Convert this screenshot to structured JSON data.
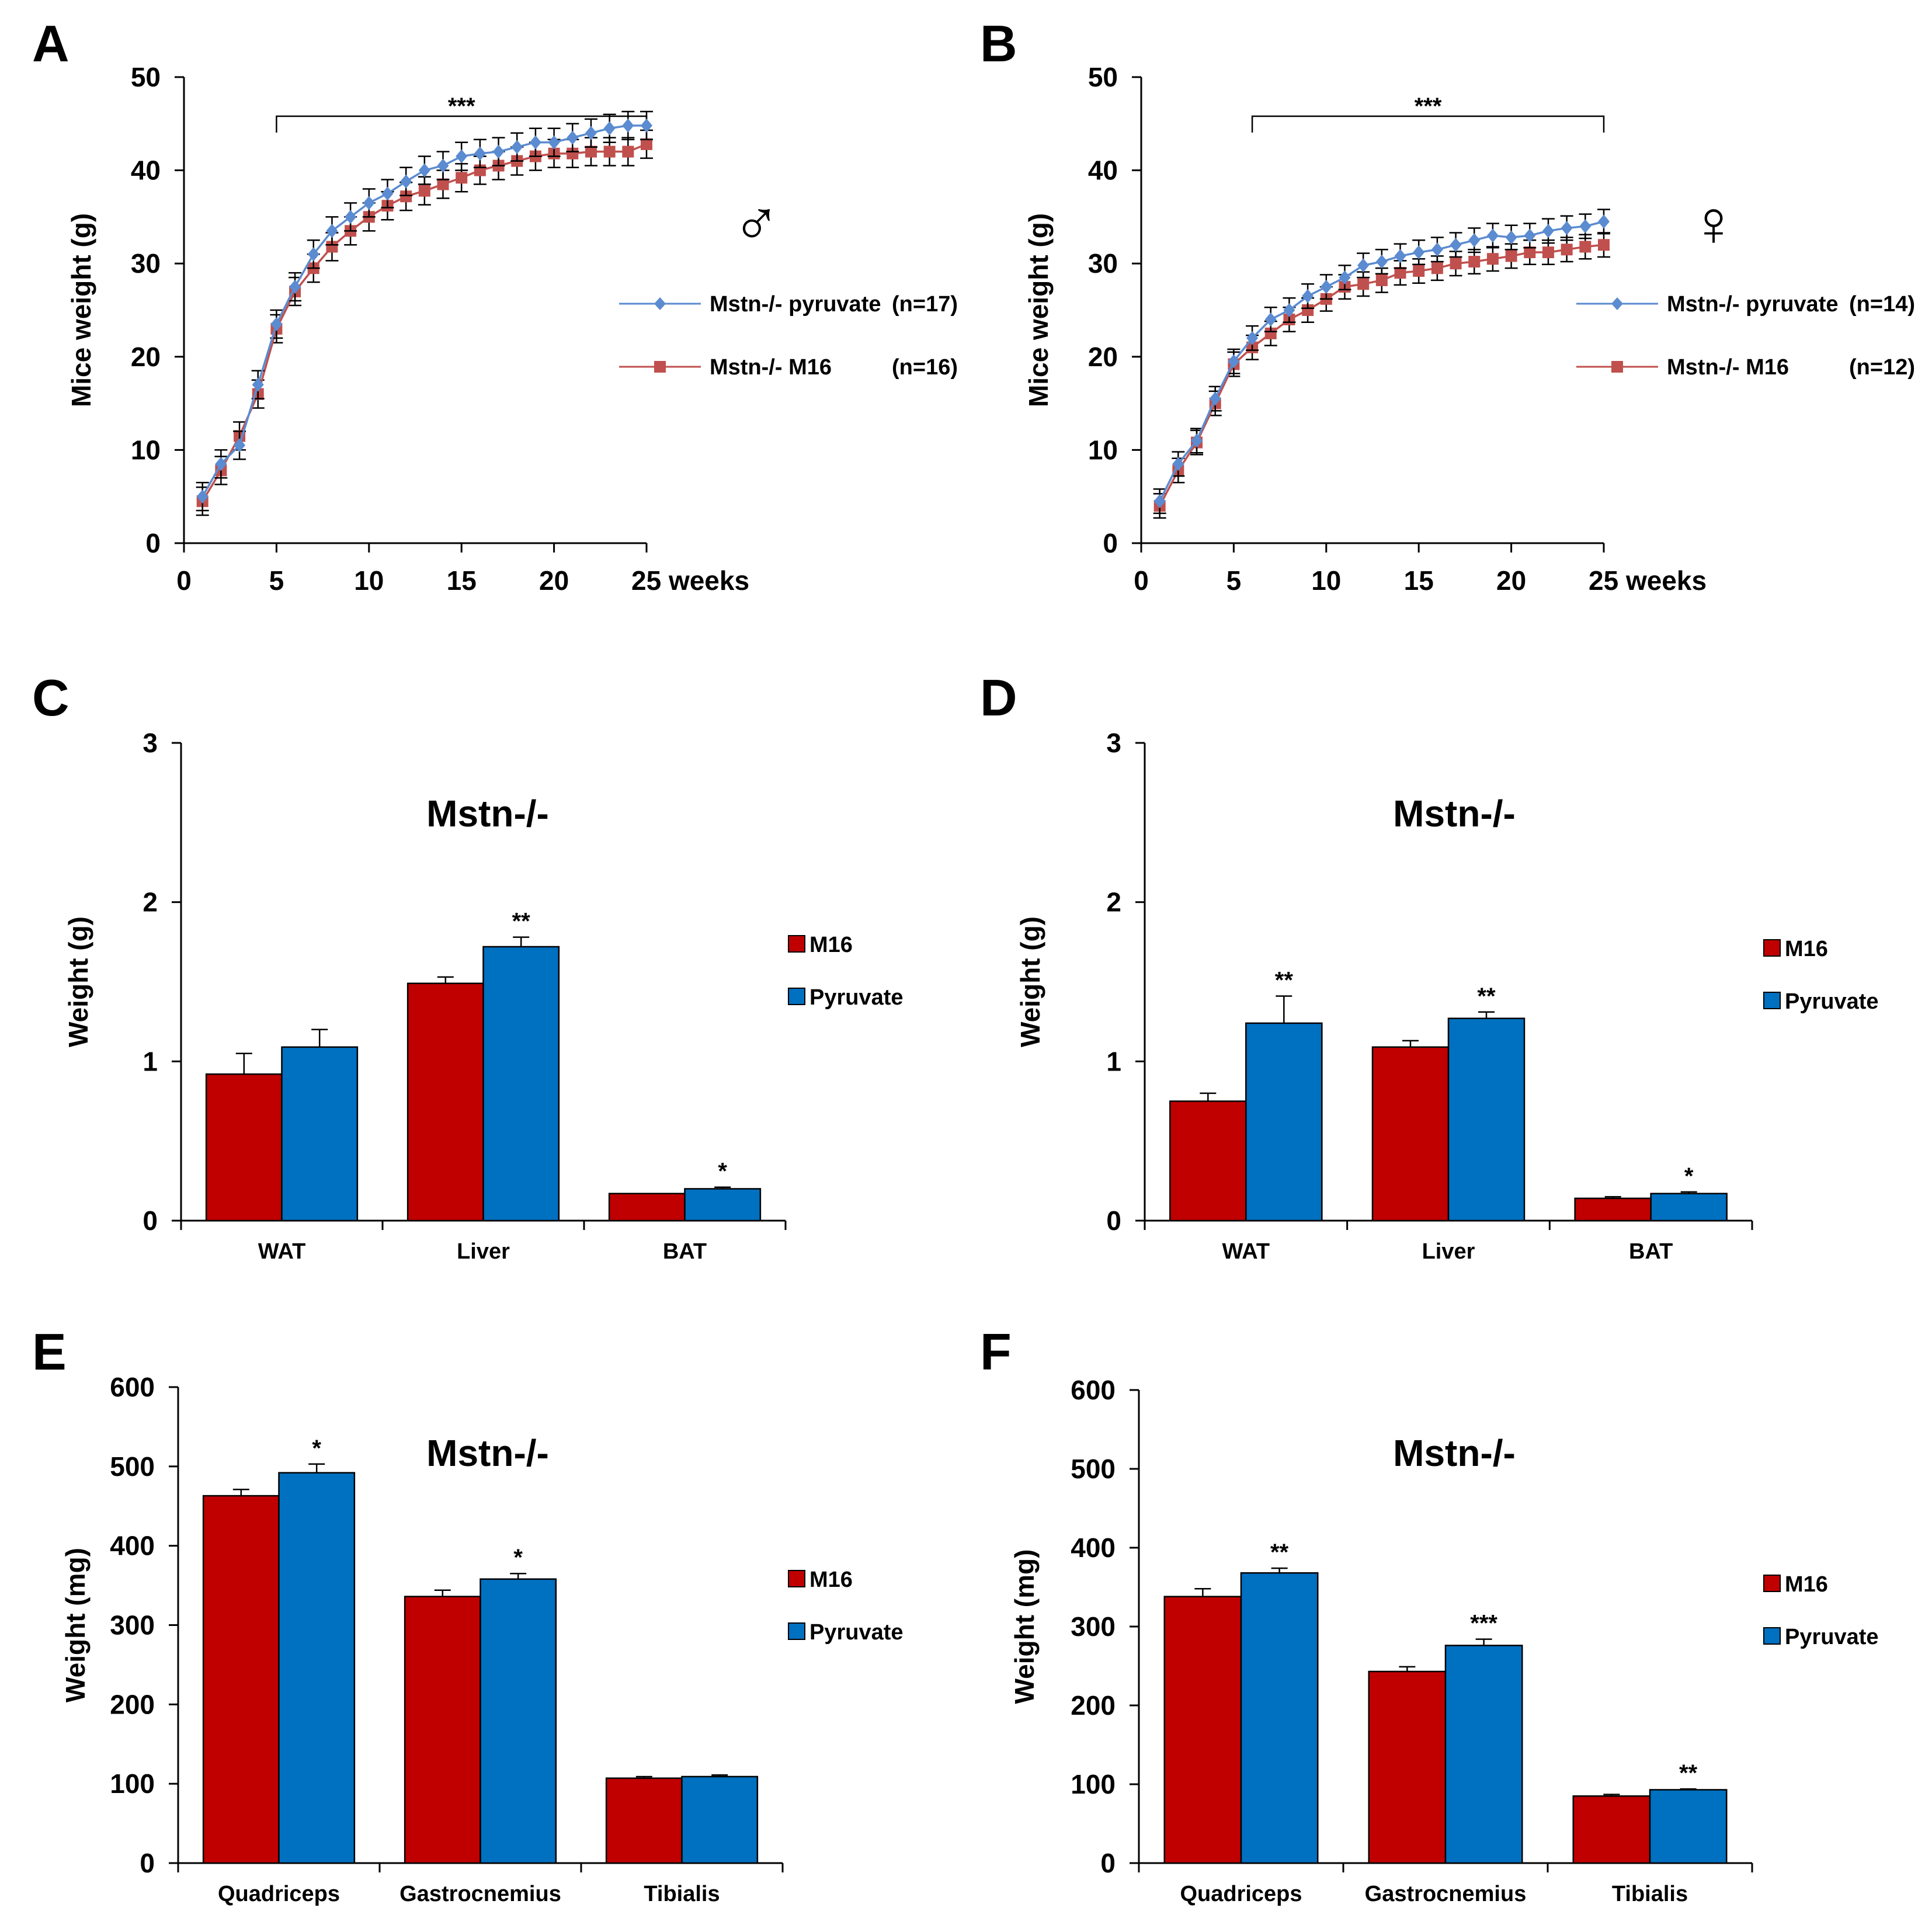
{
  "chart_data": [
    {
      "panel": "A",
      "type": "line",
      "xlabel": "weeks",
      "ylabel": "Mice weight (g)",
      "xlim": [
        0,
        25
      ],
      "ylim": [
        0,
        50
      ],
      "xticks": [
        0,
        5,
        10,
        15,
        20,
        25
      ],
      "yticks": [
        0,
        10,
        20,
        30,
        40,
        50
      ],
      "x": [
        1,
        2,
        3,
        4,
        5,
        6,
        7,
        8,
        9,
        10,
        11,
        12,
        13,
        14,
        15,
        16,
        17,
        18,
        19,
        20,
        21,
        22,
        23,
        24,
        25
      ],
      "series": [
        {
          "name": "Mstn-/- pyruvate",
          "n_label": "(n=17)",
          "color": "#5B8BD0",
          "marker": "diamond",
          "values": [
            5.0,
            8.5,
            10.5,
            17.0,
            23.5,
            27.5,
            31.0,
            33.5,
            35.0,
            36.5,
            37.5,
            38.8,
            40.0,
            40.5,
            41.5,
            41.8,
            42.0,
            42.5,
            43.0,
            43.0,
            43.5,
            44.0,
            44.5,
            44.8,
            44.8
          ]
        },
        {
          "name": "Mstn-/- M16",
          "n_label": "(n=16)",
          "color": "#C0504D",
          "marker": "square",
          "values": [
            4.5,
            7.8,
            11.5,
            16.0,
            23.0,
            27.0,
            29.5,
            31.8,
            33.5,
            35.0,
            36.2,
            37.2,
            37.8,
            38.5,
            39.2,
            40.0,
            40.5,
            41.0,
            41.5,
            41.8,
            41.8,
            42.0,
            42.0,
            42.0,
            42.8
          ]
        }
      ],
      "errors": 1.5,
      "significance": {
        "label": "***",
        "from": 5,
        "to": 25
      },
      "sex_symbol": "♂"
    },
    {
      "panel": "B",
      "type": "line",
      "xlabel": "weeks",
      "ylabel": "Mice weight (g)",
      "xlim": [
        0,
        25
      ],
      "ylim": [
        0,
        50
      ],
      "xticks": [
        0,
        5,
        10,
        15,
        20,
        25
      ],
      "yticks": [
        0,
        10,
        20,
        30,
        40,
        50
      ],
      "x": [
        1,
        2,
        3,
        4,
        5,
        6,
        7,
        8,
        9,
        10,
        11,
        12,
        13,
        14,
        15,
        16,
        17,
        18,
        19,
        20,
        21,
        22,
        23,
        24,
        25
      ],
      "series": [
        {
          "name": "Mstn-/- pyruvate",
          "n_label": "(n=14)",
          "color": "#5B8BD0",
          "marker": "diamond",
          "values": [
            4.5,
            8.5,
            11.0,
            15.5,
            19.5,
            22.0,
            24.0,
            25.0,
            26.5,
            27.5,
            28.5,
            29.8,
            30.2,
            30.8,
            31.2,
            31.5,
            32.0,
            32.5,
            33.0,
            32.8,
            33.0,
            33.5,
            33.8,
            34.0,
            34.5
          ]
        },
        {
          "name": "Mstn-/- M16",
          "n_label": "(n=12)",
          "color": "#C0504D",
          "marker": "square",
          "values": [
            4.0,
            7.8,
            10.8,
            15.0,
            19.2,
            21.0,
            22.5,
            24.0,
            25.0,
            26.2,
            27.5,
            27.8,
            28.2,
            29.0,
            29.2,
            29.5,
            30.0,
            30.2,
            30.5,
            30.8,
            31.2,
            31.2,
            31.5,
            31.8,
            32.0
          ]
        }
      ],
      "errors": 1.3,
      "significance": {
        "label": "***",
        "from": 6,
        "to": 25
      },
      "sex_symbol": "♀"
    },
    {
      "panel": "C",
      "type": "bar",
      "title": "Mstn-/-",
      "ylabel": "Weight (g)",
      "ylim": [
        0,
        3
      ],
      "yticks": [
        0,
        1,
        2,
        3
      ],
      "categories": [
        "WAT",
        "Liver",
        "BAT"
      ],
      "series": [
        {
          "name": "M16",
          "color": "#C00000",
          "values": [
            0.92,
            1.49,
            0.17
          ],
          "errors": [
            0.13,
            0.04,
            0.0
          ]
        },
        {
          "name": "Pyruvate",
          "color": "#0070C0",
          "values": [
            1.09,
            1.72,
            0.2
          ],
          "errors": [
            0.11,
            0.06,
            0.01
          ]
        }
      ],
      "annotations": [
        "",
        "**",
        "*"
      ]
    },
    {
      "panel": "D",
      "type": "bar",
      "title": "Mstn-/-",
      "ylabel": "Weight (g)",
      "ylim": [
        0,
        3
      ],
      "yticks": [
        0,
        1,
        2,
        3
      ],
      "categories": [
        "WAT",
        "Liver",
        "BAT"
      ],
      "series": [
        {
          "name": "M16",
          "color": "#C00000",
          "values": [
            0.75,
            1.09,
            0.14
          ],
          "errors": [
            0.05,
            0.04,
            0.01
          ]
        },
        {
          "name": "Pyruvate",
          "color": "#0070C0",
          "values": [
            1.24,
            1.27,
            0.17
          ],
          "errors": [
            0.17,
            0.04,
            0.01
          ]
        }
      ],
      "annotations": [
        "**",
        "**",
        "*"
      ]
    },
    {
      "panel": "E",
      "type": "bar",
      "title": "Mstn-/-",
      "ylabel": "Weight (mg)",
      "ylim": [
        0,
        600
      ],
      "yticks": [
        0,
        100,
        200,
        300,
        400,
        500,
        600
      ],
      "categories": [
        "Quadriceps",
        "Gastrocnemius",
        "Tibialis"
      ],
      "series": [
        {
          "name": "M16",
          "color": "#C00000",
          "values": [
            463,
            336,
            107
          ],
          "errors": [
            8,
            8,
            2
          ]
        },
        {
          "name": "Pyruvate",
          "color": "#0070C0",
          "values": [
            492,
            358,
            109
          ],
          "errors": [
            11,
            7,
            2
          ]
        }
      ],
      "annotations": [
        "*",
        "*",
        ""
      ]
    },
    {
      "panel": "F",
      "type": "bar",
      "title": "Mstn-/-",
      "ylabel": "Weight (mg)",
      "ylim": [
        0,
        600
      ],
      "yticks": [
        0,
        100,
        200,
        300,
        400,
        500,
        600
      ],
      "categories": [
        "Quadriceps",
        "Gastrocnemius",
        "Tibialis"
      ],
      "series": [
        {
          "name": "M16",
          "color": "#C00000",
          "values": [
            338,
            243,
            85
          ],
          "errors": [
            10,
            6,
            2
          ]
        },
        {
          "name": "Pyruvate",
          "color": "#0070C0",
          "values": [
            368,
            276,
            93
          ],
          "errors": [
            6,
            8,
            1
          ]
        }
      ],
      "annotations": [
        "**",
        "***",
        "**"
      ]
    }
  ]
}
